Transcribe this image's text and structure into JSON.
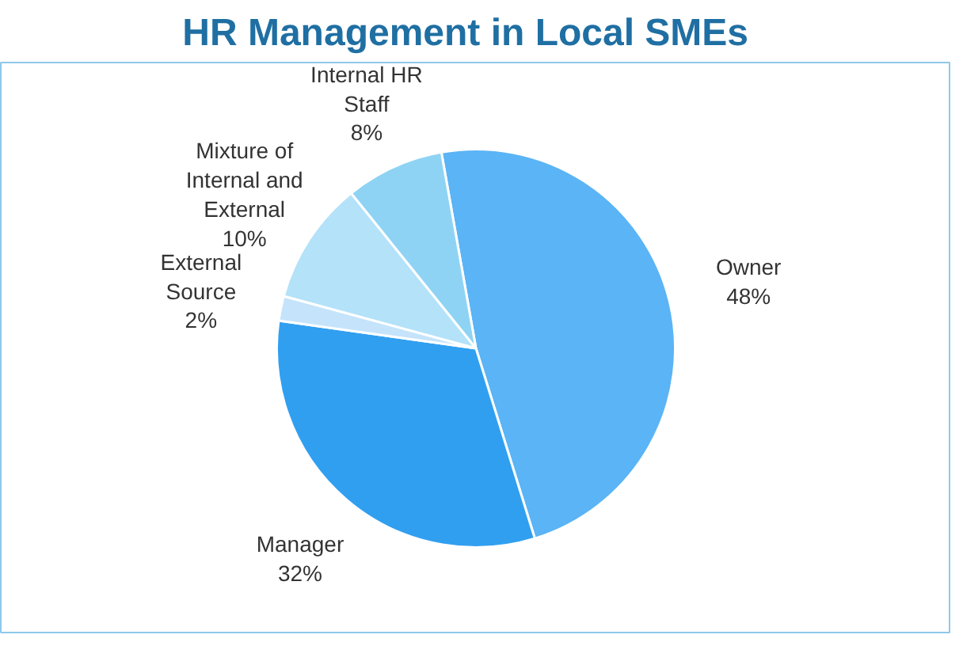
{
  "chart_data": {
    "type": "pie",
    "title": "HR Management  in Local  SMEs",
    "categories": [
      "Owner",
      "Manager",
      "External Source",
      "Mixture of Internal and External",
      "Internal HR Staff"
    ],
    "values": [
      48,
      32,
      2,
      10,
      8
    ],
    "colors": [
      "#5ab4f5",
      "#319ff0",
      "#c5e4fb",
      "#b3e2f9",
      "#8fd3f4"
    ],
    "value_labels": [
      "48%",
      "32%",
      "2%",
      "10%",
      "8%"
    ]
  }
}
